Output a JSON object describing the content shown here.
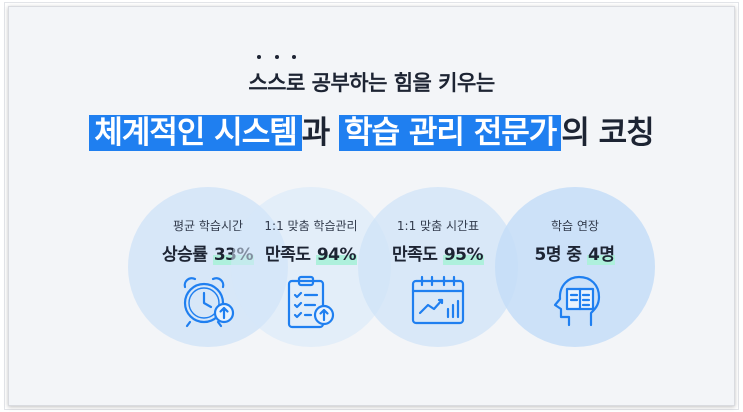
{
  "header": {
    "subtitle_dotted": "스스로",
    "subtitle_rest": " 공부하는 힘을 키우는",
    "title_hl1": "체계적인 시스템",
    "title_mid": "과",
    "title_hl2": "학습 관리 전문가",
    "title_end": "의 코칭"
  },
  "stats": [
    {
      "label": "평균 학습시간",
      "prefix": "상승률 ",
      "value": "33%",
      "icon": "alarm-clock-up-icon"
    },
    {
      "label": "1:1 맞춤 학습관리",
      "prefix": "만족도 ",
      "value": "94%",
      "icon": "clipboard-checklist-icon"
    },
    {
      "label": "1:1 맞춤 시간표",
      "prefix": "만족도 ",
      "value": "95%",
      "icon": "calendar-chart-icon"
    },
    {
      "label": "학습 연장",
      "prefix": "5명 중 ",
      "value": "4명",
      "icon": "head-book-icon"
    }
  ],
  "colors": {
    "highlight": "#1f7ff0",
    "mark": "#aef0dc",
    "icon": "#1f7ff0"
  }
}
